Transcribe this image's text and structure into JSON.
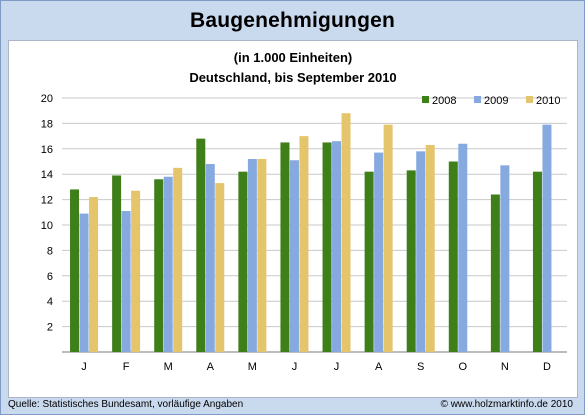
{
  "title": "Baugenehmigungen",
  "footer": {
    "source": "Quelle: Statistisches Bundesamt, vorläufige Angaben",
    "copyright": "© www.holzmarktinfo.de 2010"
  },
  "colors": {
    "2008": "#3f7f1a",
    "2009": "#86a9e0",
    "2010": "#e5c56b",
    "grid": "#c9c9c9",
    "axis": "#7a7a7a"
  },
  "chart_data": {
    "type": "bar",
    "subtitle_line1": "(in 1.000 Einheiten)",
    "subtitle_line2": "Deutschland, bis September 2010",
    "categories": [
      "J",
      "F",
      "M",
      "A",
      "M",
      "J",
      "J",
      "A",
      "S",
      "O",
      "N",
      "D"
    ],
    "series": [
      {
        "name": "2008",
        "values": [
          12.8,
          13.9,
          13.6,
          16.8,
          14.2,
          16.5,
          16.5,
          14.2,
          14.3,
          15.0,
          12.4,
          14.2
        ]
      },
      {
        "name": "2009",
        "values": [
          10.9,
          11.1,
          13.8,
          14.8,
          15.2,
          15.1,
          16.6,
          15.7,
          15.8,
          16.4,
          14.7,
          17.9
        ]
      },
      {
        "name": "2010",
        "values": [
          12.2,
          12.7,
          14.5,
          13.3,
          15.2,
          17.0,
          18.8,
          17.9,
          16.3,
          null,
          null,
          null
        ]
      }
    ],
    "ylim": [
      0,
      20
    ],
    "yticks": [
      "2",
      "4",
      "6",
      "8",
      "10",
      "12",
      "14",
      "16",
      "18",
      "20"
    ],
    "legend": "top-right",
    "grid": true
  }
}
